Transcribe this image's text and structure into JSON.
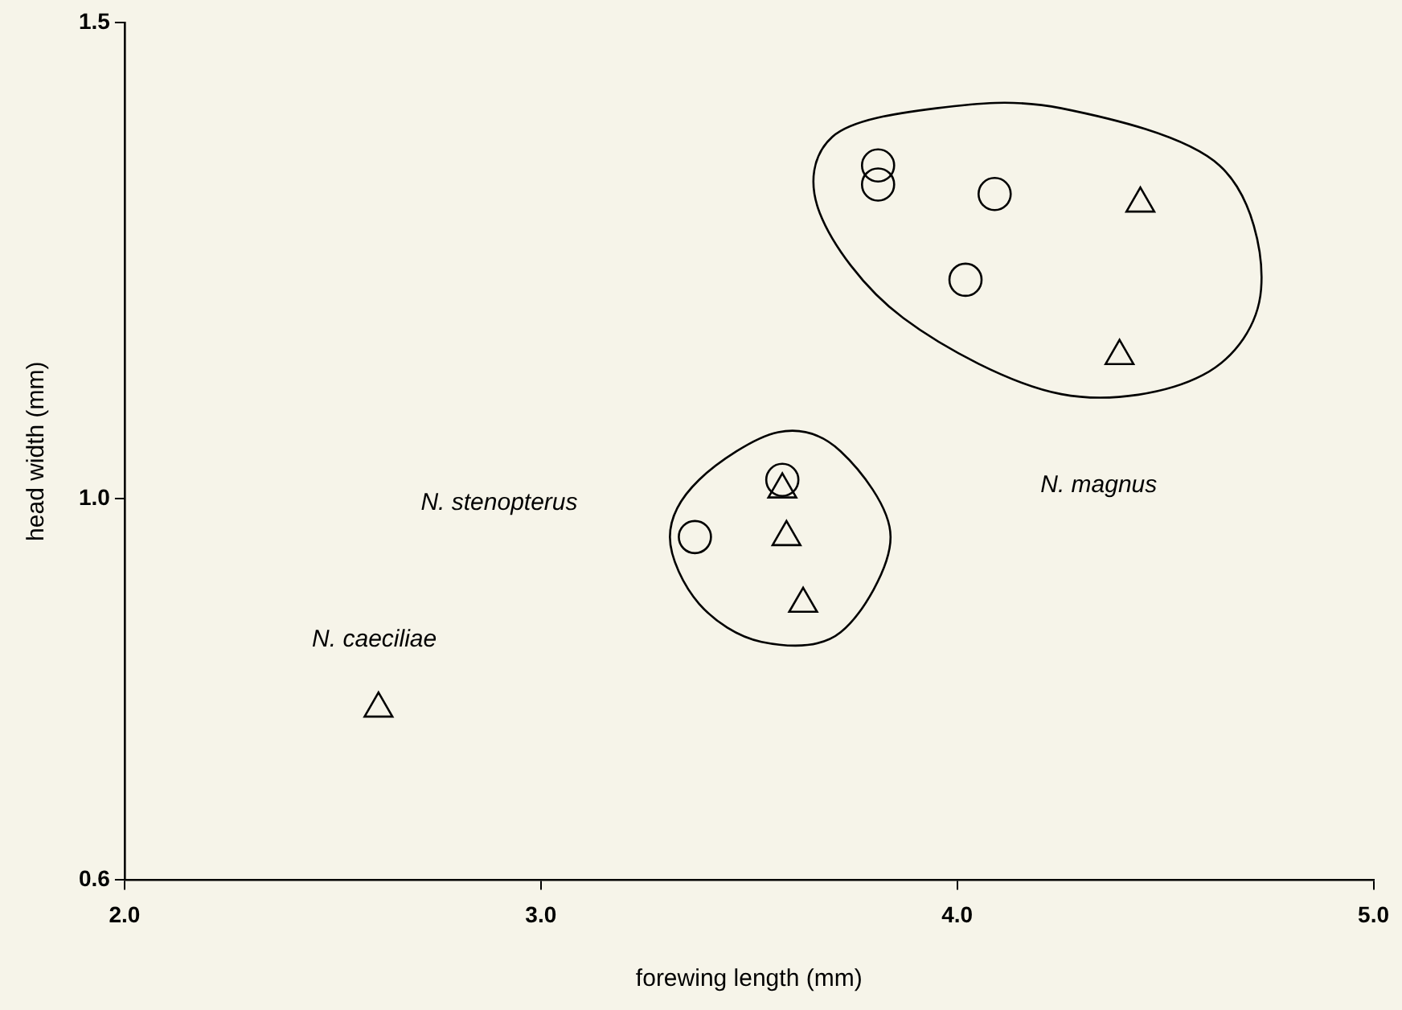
{
  "chart_data": {
    "type": "scatter",
    "xlabel": "forewing length (mm)",
    "ylabel": "head width (mm)",
    "xlim": [
      2.0,
      5.0
    ],
    "xticks": [
      {
        "value": 2,
        "label": "2.0"
      },
      {
        "value": 3,
        "label": "3.0"
      },
      {
        "value": 4,
        "label": "4.0"
      },
      {
        "value": 5,
        "label": "5.0"
      }
    ],
    "ylim": [
      0.6,
      1.5
    ],
    "yticks": [
      0.6,
      {
        "value": 1,
        "label": "1.0"
      },
      1.5
    ],
    "grid": false,
    "legend": false,
    "series": [
      {
        "color": "#000000",
        "marker": "circle",
        "x": [
          3.81,
          3.81,
          4.09,
          4.02,
          3.58,
          3.37
        ],
        "values": [
          1.35,
          1.33,
          1.32,
          1.23,
          1.02,
          0.96
        ]
      },
      {
        "color": "#000000",
        "marker": "triangle",
        "x": [
          4.44,
          4.39,
          3.58,
          3.59,
          3.63,
          2.61
        ],
        "values": [
          1.31,
          1.15,
          1.01,
          0.96,
          0.89,
          0.78
        ]
      }
    ],
    "annotations": [
      "N. caeciliae",
      "N. stenopterus",
      "N. magnus"
    ]
  }
}
